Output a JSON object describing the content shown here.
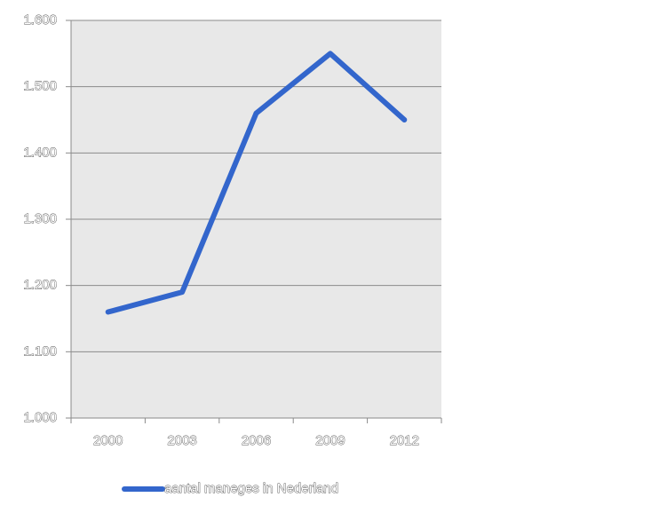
{
  "chart_data": {
    "type": "line",
    "categories": [
      "2000",
      "2003",
      "2006",
      "2009",
      "2012"
    ],
    "series": [
      {
        "name": "aantal maneges in Nederland",
        "color": "#3366cc",
        "values": [
          1160,
          1190,
          1460,
          1550,
          1450
        ]
      }
    ],
    "ylim": [
      1000,
      1600
    ],
    "yticks": [
      {
        "value": 1000,
        "label": "1.000"
      },
      {
        "value": 1100,
        "label": "1.100"
      },
      {
        "value": 1200,
        "label": "1.200"
      },
      {
        "value": 1300,
        "label": "1.300"
      },
      {
        "value": 1400,
        "label": "1.400"
      },
      {
        "value": 1500,
        "label": "1.500"
      },
      {
        "value": 1600,
        "label": "1.600"
      }
    ],
    "grid": true,
    "legend": "bottom"
  }
}
